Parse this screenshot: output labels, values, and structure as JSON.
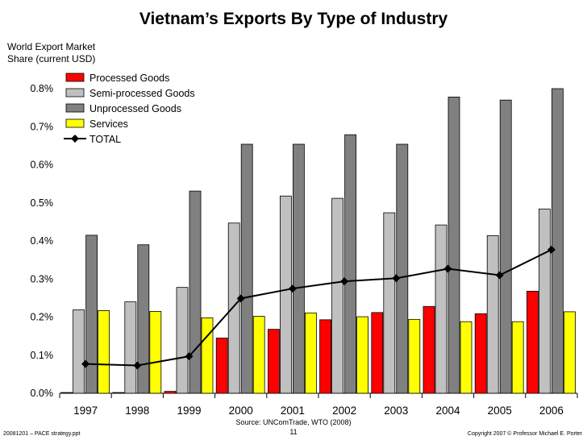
{
  "chart_data": {
    "type": "bar",
    "title": "Vietnam’s Exports By Type of Industry",
    "ylabel": "World Export Market\nShare (current USD)",
    "xlabel": "",
    "ylim": [
      0,
      0.8
    ],
    "yticks": [
      "0.0%",
      "0.1%",
      "0.2%",
      "0.3%",
      "0.4%",
      "0.5%",
      "0.6%",
      "0.7%",
      "0.8%"
    ],
    "categories": [
      "1997",
      "1998",
      "1999",
      "2000",
      "2001",
      "2002",
      "2003",
      "2004",
      "2005",
      "2006"
    ],
    "series": [
      {
        "name": "Processed Goods",
        "type": "bar",
        "color": "#ff0000",
        "values": [
          0.002,
          0.002,
          0.005,
          0.145,
          0.168,
          0.193,
          0.212,
          0.228,
          0.209,
          0.268
        ]
      },
      {
        "name": "Semi-processed Goods",
        "type": "bar",
        "color": "#c0c0c0",
        "values": [
          0.219,
          0.24,
          0.278,
          0.447,
          0.518,
          0.512,
          0.474,
          0.442,
          0.414,
          0.484
        ]
      },
      {
        "name": "Unprocessed Goods",
        "type": "bar",
        "color": "#808080",
        "values": [
          0.415,
          0.39,
          0.531,
          0.654,
          0.654,
          0.679,
          0.654,
          0.778,
          0.77,
          0.8
        ]
      },
      {
        "name": "Services",
        "type": "bar",
        "color": "#ffff00",
        "values": [
          0.217,
          0.215,
          0.198,
          0.202,
          0.211,
          0.201,
          0.194,
          0.188,
          0.188,
          0.214
        ]
      },
      {
        "name": "TOTAL",
        "type": "line",
        "color": "#000000",
        "values": [
          0.077,
          0.073,
          0.097,
          0.249,
          0.275,
          0.294,
          0.302,
          0.327,
          0.31,
          0.377
        ]
      }
    ],
    "legend_position": "top-left",
    "grid": false
  },
  "source": "Source:   UNComTrade, WTO (2008)",
  "page_number": "11",
  "footer_left": "20081201 – PACE strategy.ppt",
  "footer_right": "Copyright 2007 © Professor Michael E. Porter"
}
